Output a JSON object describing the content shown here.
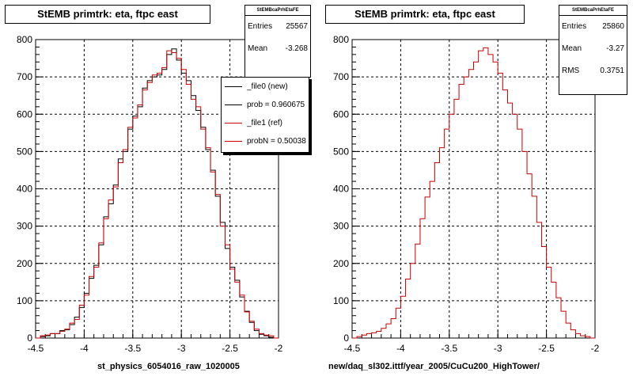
{
  "chart_data": [
    {
      "type": "histogram",
      "title": "StEMB primtrk: eta, ftpc east",
      "xlabel": "st_physics_6054016_raw_1020005",
      "ylabel": "",
      "xlim": [
        -4.5,
        -2
      ],
      "ylim": [
        0,
        800
      ],
      "x_ticks": [
        "-4.5",
        "-4",
        "-3.5",
        "-3",
        "-2.5",
        "-2"
      ],
      "y_ticks": [
        "0",
        "100",
        "200",
        "300",
        "400",
        "500",
        "600",
        "700",
        "800"
      ],
      "grid": true,
      "bin_width": 0.05,
      "bin_centers_start": -4.475,
      "series": [
        {
          "name": "_file0 (new)",
          "color": "#000000",
          "values": [
            0,
            4,
            6,
            12,
            12,
            20,
            22,
            36,
            56,
            82,
            120,
            160,
            195,
            250,
            325,
            360,
            410,
            480,
            500,
            560,
            595,
            620,
            670,
            690,
            700,
            705,
            720,
            760,
            775,
            745,
            710,
            690,
            650,
            610,
            565,
            505,
            450,
            380,
            310,
            240,
            190,
            155,
            110,
            72,
            42,
            20,
            10,
            6,
            2,
            0
          ]
        },
        {
          "name": "_file1 (ref)",
          "color": "#cc0000",
          "values": [
            0,
            6,
            8,
            12,
            12,
            18,
            24,
            40,
            50,
            88,
            115,
            165,
            190,
            255,
            320,
            370,
            405,
            470,
            505,
            565,
            590,
            625,
            665,
            685,
            705,
            710,
            725,
            770,
            765,
            750,
            720,
            680,
            640,
            620,
            560,
            510,
            445,
            385,
            300,
            250,
            185,
            150,
            115,
            70,
            45,
            24,
            12,
            8,
            6,
            0
          ]
        }
      ],
      "legend": [
        {
          "label": "_file0 (new)",
          "color": "#000000"
        },
        {
          "label": "prob = 0.960675",
          "color": "#000000"
        },
        {
          "label": "_file1 (ref)",
          "color": "#cc0000"
        },
        {
          "label": "probN = 0.50038",
          "color": "#cc0000"
        }
      ],
      "stats": {
        "header": "StEMBcaPrhEtaFE",
        "rows": [
          {
            "label": "Entries",
            "value": "25567"
          },
          {
            "label": "Mean",
            "value": "-3.268"
          }
        ]
      }
    },
    {
      "type": "histogram",
      "title": "StEMB primtrk: eta, ftpc east",
      "xlabel": "new/daq_sl302.ittf/year_2005/CuCu200_HighTower/",
      "ylabel": "",
      "xlim": [
        -4.5,
        -2
      ],
      "ylim": [
        0,
        800
      ],
      "x_ticks": [
        "-4.5",
        "-4",
        "-3.5",
        "-3",
        "-2.5",
        "-2"
      ],
      "y_ticks": [
        "0",
        "100",
        "200",
        "300",
        "400",
        "500",
        "600",
        "700",
        "800"
      ],
      "grid": true,
      "bin_width": 0.05,
      "bin_centers_start": -4.475,
      "series": [
        {
          "name": "",
          "color": "#cc0000",
          "values": [
            0,
            4,
            8,
            12,
            14,
            18,
            26,
            38,
            52,
            80,
            112,
            158,
            200,
            252,
            320,
            378,
            420,
            470,
            510,
            560,
            600,
            640,
            680,
            700,
            720,
            740,
            770,
            778,
            760,
            740,
            710,
            665,
            630,
            600,
            560,
            500,
            440,
            380,
            310,
            245,
            190,
            150,
            108,
            72,
            40,
            22,
            12,
            6,
            4,
            0
          ]
        }
      ],
      "stats": {
        "header": "StEMBcaPrhEtaFE",
        "rows": [
          {
            "label": "Entries",
            "value": "25860"
          },
          {
            "label": "Mean",
            "value": "-3.27"
          },
          {
            "label": "RMS",
            "value": "0.3751"
          }
        ]
      }
    }
  ]
}
